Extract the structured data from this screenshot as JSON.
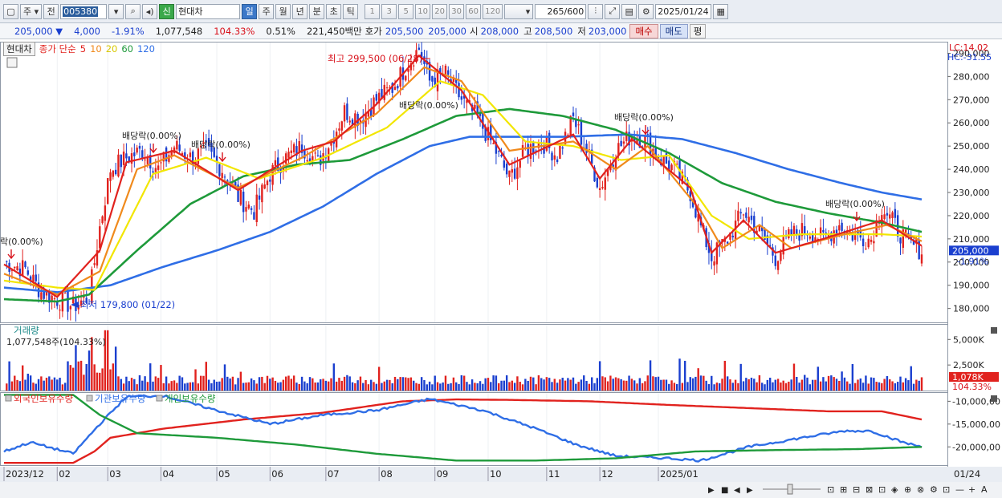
{
  "toolbar": {
    "market_label": "주",
    "prev_label": "전",
    "code": "005380",
    "name_badge": "신",
    "name": "현대차",
    "periods": [
      "일",
      "주",
      "월",
      "년",
      "분",
      "초",
      "틱"
    ],
    "active_period": "일",
    "intervals": [
      "1",
      "3",
      "5",
      "10",
      "20",
      "30",
      "60",
      "120"
    ],
    "count": "265",
    "total": "/600",
    "date": "2025/01/24"
  },
  "quote": {
    "price": "205,000",
    "change_arrow": "▼",
    "change": "4,000",
    "change_pct": "-1.91%",
    "volume": "1,077,548",
    "volume_ratio": "104.33%",
    "turnover_pct": "0.51%",
    "amount": "221,450백만",
    "ask_label": "호가",
    "ask1": "205,500",
    "ask2": "205,000",
    "open_label": "시",
    "open": "208,000",
    "high_label": "고",
    "high": "208,500",
    "low_label": "저",
    "low": "203,000",
    "buy_label": "매수",
    "sell_label": "매도",
    "flat_label": "평"
  },
  "legend": {
    "stock": "현대차",
    "ma_title": "종가 단순",
    "ma_periods": [
      "5",
      "10",
      "20",
      "60",
      "120"
    ]
  },
  "colors": {
    "up": "#e1221e",
    "down": "#1a3fcf",
    "ma5": "#e1221e",
    "ma10": "#f08a1c",
    "ma20": "#f2e600",
    "ma60": "#1e9a3a",
    "ma120": "#2f6ee6",
    "foreign": "#e1221e",
    "institution": "#2f6ee6",
    "individual": "#1e9a3a"
  },
  "chart_data": [
    {
      "type": "candlestick",
      "panel": "price",
      "x_labels": [
        "2023/12",
        "02",
        "03",
        "04",
        "05",
        "06",
        "07",
        "08",
        "09",
        "10",
        "11",
        "12",
        "2025/01",
        "01/24"
      ],
      "y_ticks": [
        "180,000",
        "190,000",
        "200,000",
        "210,000",
        "220,000",
        "230,000",
        "240,000",
        "250,000",
        "260,000",
        "270,000",
        "280,000",
        "290,000"
      ],
      "ylim": [
        174000,
        295000
      ],
      "last_price_label": "205,000",
      "last_change_label": "-1.91%",
      "lc_label": "LC:14.02",
      "hc_label": "HC:-31.55",
      "annotations": {
        "high": "최고 299,500 (06/28)",
        "low": "최저 179,800 (01/22)",
        "dividends": [
          "락(0.00%)",
          "배당락(0.00%)",
          "배당락(0.00%)",
          "배당락(0.00%)",
          "배당락(0.00%)",
          "배당락(0.00%)"
        ]
      },
      "close_path": [
        [
          0,
          200000
        ],
        [
          8,
          197000
        ],
        [
          14,
          187000
        ],
        [
          20,
          184000
        ],
        [
          26,
          181000
        ],
        [
          32,
          185000
        ],
        [
          36,
          215000
        ],
        [
          40,
          240000
        ],
        [
          46,
          245000
        ],
        [
          52,
          248000
        ],
        [
          58,
          240000
        ],
        [
          64,
          250000
        ],
        [
          70,
          245000
        ],
        [
          76,
          248000
        ],
        [
          82,
          240000
        ],
        [
          88,
          228000
        ],
        [
          94,
          222000
        ],
        [
          100,
          238000
        ],
        [
          106,
          245000
        ],
        [
          112,
          250000
        ],
        [
          118,
          243000
        ],
        [
          124,
          255000
        ],
        [
          128,
          265000
        ],
        [
          134,
          262000
        ],
        [
          140,
          270000
        ],
        [
          146,
          275000
        ],
        [
          152,
          286000
        ],
        [
          156,
          292000
        ],
        [
          160,
          278000
        ],
        [
          166,
          281000
        ],
        [
          172,
          270000
        ],
        [
          178,
          262000
        ],
        [
          184,
          250000
        ],
        [
          190,
          236000
        ],
        [
          196,
          248000
        ],
        [
          202,
          252000
        ],
        [
          208,
          246000
        ],
        [
          214,
          262000
        ],
        [
          220,
          245000
        ],
        [
          224,
          232000
        ],
        [
          230,
          248000
        ],
        [
          236,
          255000
        ],
        [
          242,
          252000
        ],
        [
          246,
          245000
        ],
        [
          252,
          240000
        ],
        [
          258,
          230000
        ],
        [
          262,
          215000
        ],
        [
          266,
          202000
        ],
        [
          272,
          210000
        ],
        [
          278,
          222000
        ],
        [
          284,
          213000
        ],
        [
          290,
          202000
        ],
        [
          296,
          212000
        ],
        [
          302,
          214000
        ],
        [
          308,
          210000
        ],
        [
          314,
          216000
        ],
        [
          320,
          211000
        ],
        [
          326,
          210000
        ],
        [
          330,
          224000
        ],
        [
          336,
          214000
        ],
        [
          340,
          208000
        ],
        [
          345,
          205000
        ]
      ],
      "ma": [
        {
          "name": "5",
          "values": [
            [
              0,
              199000
            ],
            [
              20,
              185000
            ],
            [
              36,
              205000
            ],
            [
              46,
              243000
            ],
            [
              64,
              248000
            ],
            [
              88,
              231000
            ],
            [
              112,
              248000
            ],
            [
              124,
              252000
            ],
            [
              140,
              268000
            ],
            [
              156,
              289000
            ],
            [
              172,
              274000
            ],
            [
              190,
              242000
            ],
            [
              214,
              255000
            ],
            [
              224,
              236000
            ],
            [
              236,
              253000
            ],
            [
              258,
              232000
            ],
            [
              266,
              204000
            ],
            [
              278,
              218000
            ],
            [
              290,
              204000
            ],
            [
              308,
              210000
            ],
            [
              330,
              218000
            ],
            [
              345,
              207000
            ]
          ]
        },
        {
          "name": "10",
          "values": [
            [
              0,
              195000
            ],
            [
              20,
              186000
            ],
            [
              36,
              196000
            ],
            [
              50,
              240000
            ],
            [
              64,
              246000
            ],
            [
              88,
              232000
            ],
            [
              112,
              245000
            ],
            [
              140,
              264000
            ],
            [
              158,
              284000
            ],
            [
              172,
              278000
            ],
            [
              190,
              248000
            ],
            [
              214,
              252000
            ],
            [
              230,
              240000
            ],
            [
              242,
              250000
            ],
            [
              262,
              222000
            ],
            [
              270,
              206000
            ],
            [
              284,
              216000
            ],
            [
              296,
              206000
            ],
            [
              316,
              212000
            ],
            [
              332,
              216000
            ],
            [
              345,
              209000
            ]
          ]
        },
        {
          "name": "20",
          "values": [
            [
              0,
              192000
            ],
            [
              20,
              189000
            ],
            [
              34,
              188000
            ],
            [
              56,
              238000
            ],
            [
              76,
              245000
            ],
            [
              96,
              236000
            ],
            [
              120,
              245000
            ],
            [
              144,
              258000
            ],
            [
              164,
              278000
            ],
            [
              180,
              272000
            ],
            [
              196,
              252000
            ],
            [
              214,
              250000
            ],
            [
              232,
              244000
            ],
            [
              250,
              246000
            ],
            [
              266,
              220000
            ],
            [
              280,
              210000
            ],
            [
              300,
              212000
            ],
            [
              330,
              212000
            ],
            [
              345,
              211000
            ]
          ]
        },
        {
          "name": "60",
          "values": [
            [
              0,
              184000
            ],
            [
              20,
              183000
            ],
            [
              32,
              186000
            ],
            [
              50,
              205000
            ],
            [
              70,
              225000
            ],
            [
              90,
              237000
            ],
            [
              110,
              242000
            ],
            [
              130,
              244000
            ],
            [
              150,
              253000
            ],
            [
              170,
              263000
            ],
            [
              190,
              266000
            ],
            [
              210,
              263000
            ],
            [
              230,
              257000
            ],
            [
              250,
              247000
            ],
            [
              270,
              234000
            ],
            [
              290,
              226000
            ],
            [
              310,
              221000
            ],
            [
              330,
              217000
            ],
            [
              345,
              213000
            ]
          ]
        },
        {
          "name": "120",
          "values": [
            [
              0,
              189000
            ],
            [
              20,
              187000
            ],
            [
              40,
              190000
            ],
            [
              60,
              198000
            ],
            [
              80,
              205000
            ],
            [
              100,
              213000
            ],
            [
              120,
              224000
            ],
            [
              140,
              238000
            ],
            [
              160,
              250000
            ],
            [
              175,
              254000
            ],
            [
              190,
              254000
            ],
            [
              210,
              254000
            ],
            [
              235,
              255000
            ],
            [
              255,
              253000
            ],
            [
              275,
              247000
            ],
            [
              295,
              240000
            ],
            [
              315,
              234000
            ],
            [
              330,
              230000
            ],
            [
              345,
              227000
            ]
          ]
        }
      ]
    },
    {
      "type": "bar",
      "panel": "volume",
      "title": "거래량",
      "value_label": "1,077,548주(104.33%)",
      "y_ticks": [
        "2,500K",
        "5,000K"
      ],
      "ylim": [
        0,
        6200000
      ],
      "last_label": "1,078K",
      "last_pct": "104.33%"
    },
    {
      "type": "line",
      "panel": "holdings",
      "series_names": [
        "외국인보유수량",
        "기관보유수량",
        "개인보유수량"
      ],
      "y_ticks": [
        "-10,000,00",
        "-15,000,00",
        "-20,000,00"
      ],
      "ylim": [
        -24000000,
        -8000000
      ],
      "series": [
        {
          "name": "외국인보유수량",
          "values": [
            [
              0,
              -23500000
            ],
            [
              26,
              -23500000
            ],
            [
              34,
              -21000000
            ],
            [
              40,
              -18000000
            ],
            [
              60,
              -16000000
            ],
            [
              90,
              -14000000
            ],
            [
              120,
              -12500000
            ],
            [
              150,
              -10000000
            ],
            [
              170,
              -9600000
            ],
            [
              190,
              -9700000
            ],
            [
              220,
              -10000000
            ],
            [
              250,
              -10800000
            ],
            [
              280,
              -11500000
            ],
            [
              310,
              -12200000
            ],
            [
              330,
              -12200000
            ],
            [
              345,
              -14000000
            ]
          ]
        },
        {
          "name": "기관보유수량",
          "values": [
            [
              0,
              -21000000
            ],
            [
              10,
              -19000000
            ],
            [
              26,
              -21500000
            ],
            [
              36,
              -15000000
            ],
            [
              46,
              -9000000
            ],
            [
              60,
              -8800000
            ],
            [
              80,
              -12000000
            ],
            [
              100,
              -15000000
            ],
            [
              120,
              -13000000
            ],
            [
              140,
              -12000000
            ],
            [
              160,
              -9500000
            ],
            [
              180,
              -12000000
            ],
            [
              200,
              -16000000
            ],
            [
              215,
              -19500000
            ],
            [
              230,
              -22000000
            ],
            [
              250,
              -22500000
            ],
            [
              262,
              -23000000
            ],
            [
              280,
              -20000000
            ],
            [
              300,
              -18000000
            ],
            [
              316,
              -16500000
            ],
            [
              326,
              -16500000
            ],
            [
              338,
              -19000000
            ],
            [
              345,
              -20000000
            ]
          ]
        },
        {
          "name": "개인보유수량",
          "values": [
            [
              0,
              -8600000
            ],
            [
              26,
              -8600000
            ],
            [
              36,
              -13000000
            ],
            [
              50,
              -17000000
            ],
            [
              80,
              -18000000
            ],
            [
              110,
              -19500000
            ],
            [
              140,
              -21500000
            ],
            [
              170,
              -23000000
            ],
            [
              200,
              -23000000
            ],
            [
              230,
              -22500000
            ],
            [
              260,
              -21000000
            ],
            [
              290,
              -20700000
            ],
            [
              320,
              -20500000
            ],
            [
              345,
              -20000000
            ]
          ]
        }
      ]
    }
  ]
}
